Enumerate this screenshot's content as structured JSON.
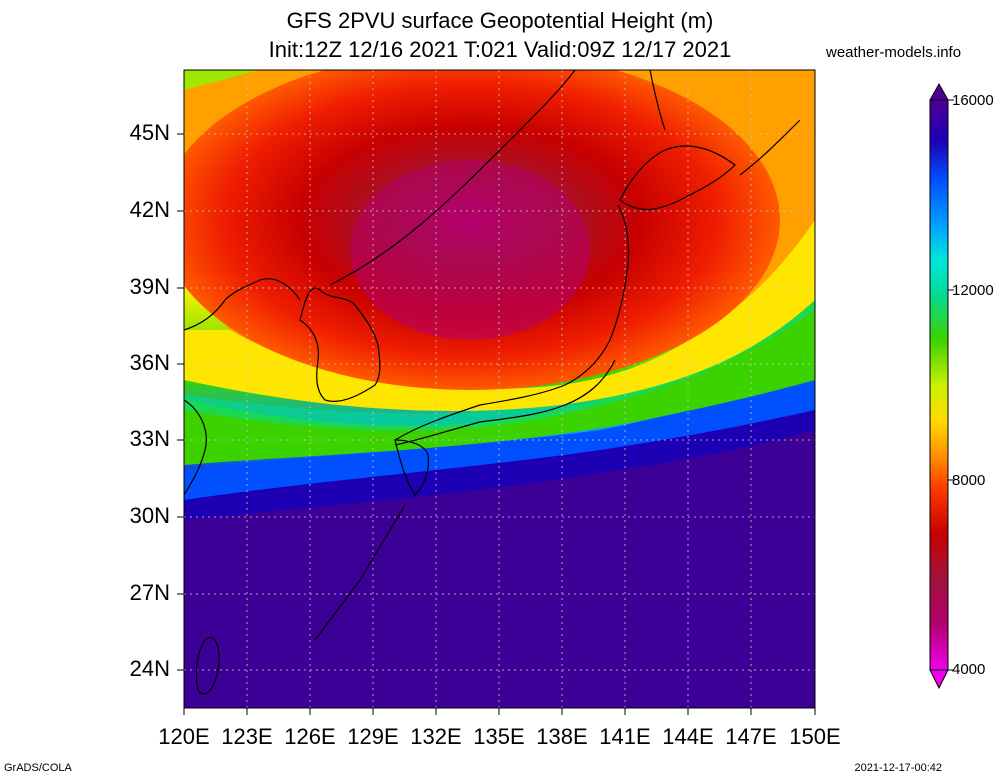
{
  "title": {
    "line1": "GFS 2PVU surface Geopotential Height (m)",
    "line2": "Init:12Z 12/16 2021 T:021 Valid:09Z 12/17 2021"
  },
  "site_label": "weather-models.info",
  "footer": {
    "left": "GrADS/COLA",
    "right": "2021-12-17-00:42"
  },
  "map": {
    "lon_range": [
      120,
      150
    ],
    "lat_range": [
      22.5,
      48
    ],
    "lon_ticks": [
      "120E",
      "123E",
      "126E",
      "129E",
      "132E",
      "135E",
      "138E",
      "141E",
      "144E",
      "147E",
      "150E"
    ],
    "lat_ticks": [
      "45N",
      "42N",
      "39N",
      "36N",
      "33N",
      "30N",
      "27N",
      "24N"
    ],
    "variable": "2PVU surface geopotential height",
    "units": "m"
  },
  "colorbar": {
    "min": 4000,
    "max": 16000,
    "labels": [
      "16000",
      "12000",
      "8000",
      "4000"
    ],
    "colors": [
      "#ee00ee",
      "#cc0099",
      "#b4006e",
      "#a0143c",
      "#b40000",
      "#d20000",
      "#f01400",
      "#ff3c00",
      "#ff7800",
      "#ffa000",
      "#ffc800",
      "#ffe600",
      "#dcf000",
      "#a0e600",
      "#6edc00",
      "#3cd200",
      "#00dc32",
      "#00dc96",
      "#00e6dc",
      "#00c8ff",
      "#00a0ff",
      "#0078ff",
      "#0050ff",
      "#0028f0",
      "#0014c8",
      "#1e00b4",
      "#3c00a0",
      "#500096"
    ]
  }
}
